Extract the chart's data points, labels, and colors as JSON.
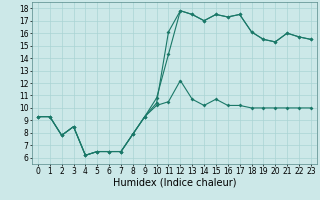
{
  "xlabel": "Humidex (Indice chaleur)",
  "xlim": [
    -0.5,
    23.5
  ],
  "ylim": [
    5.5,
    18.5
  ],
  "xticks": [
    0,
    1,
    2,
    3,
    4,
    5,
    6,
    7,
    8,
    9,
    10,
    11,
    12,
    13,
    14,
    15,
    16,
    17,
    18,
    19,
    20,
    21,
    22,
    23
  ],
  "yticks": [
    6,
    7,
    8,
    9,
    10,
    11,
    12,
    13,
    14,
    15,
    16,
    17,
    18
  ],
  "background_color": "#cce8e8",
  "grid_color": "#aad4d4",
  "line_color": "#1a7868",
  "line1_x": [
    0,
    1,
    2,
    3,
    4,
    5,
    6,
    7,
    8,
    9,
    10,
    11,
    12,
    13,
    14,
    15,
    16,
    17,
    18,
    19,
    20,
    21,
    22,
    23
  ],
  "line1_y": [
    9.3,
    9.3,
    7.8,
    8.5,
    6.2,
    6.5,
    6.5,
    6.5,
    7.9,
    9.3,
    10.2,
    10.5,
    12.2,
    10.7,
    10.2,
    10.7,
    10.2,
    10.2,
    10.0,
    10.0,
    10.0,
    10.0,
    10.0,
    10.0
  ],
  "line2_x": [
    0,
    1,
    2,
    3,
    4,
    5,
    6,
    7,
    8,
    9,
    10,
    11,
    12,
    13,
    14,
    15,
    16,
    17,
    18,
    19,
    20,
    21,
    22,
    23
  ],
  "line2_y": [
    9.3,
    9.3,
    7.8,
    8.5,
    6.2,
    6.5,
    6.5,
    6.5,
    7.9,
    9.3,
    10.4,
    16.1,
    17.8,
    17.5,
    17.0,
    17.5,
    17.3,
    17.5,
    16.1,
    15.5,
    15.3,
    16.0,
    15.7,
    15.5
  ],
  "line3_x": [
    0,
    1,
    2,
    3,
    4,
    5,
    6,
    7,
    8,
    9,
    10,
    11,
    12,
    13,
    14,
    15,
    16,
    17,
    18,
    19,
    20,
    21,
    22,
    23
  ],
  "line3_y": [
    9.3,
    9.3,
    7.8,
    8.5,
    6.2,
    6.5,
    6.5,
    6.5,
    7.9,
    9.3,
    10.8,
    14.3,
    17.8,
    17.5,
    17.0,
    17.5,
    17.3,
    17.5,
    16.1,
    15.5,
    15.3,
    16.0,
    15.7,
    15.5
  ],
  "tick_fontsize": 5.5,
  "xlabel_fontsize": 7
}
